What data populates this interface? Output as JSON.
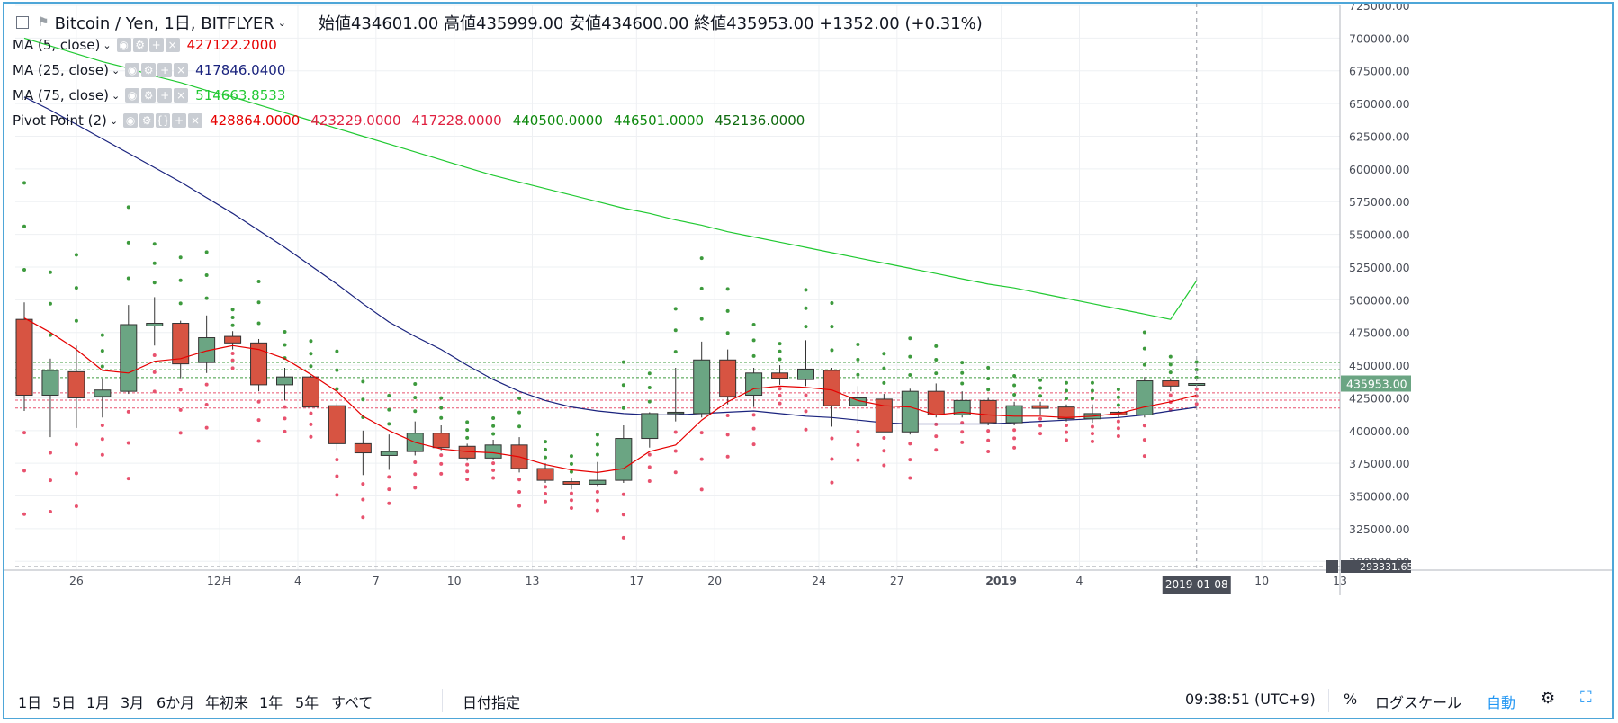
{
  "header": {
    "symbol": "Bitcoin / Yen, 1日, BITFLYER",
    "ohlc": "始値434601.00  高値435999.00  安値434600.00  終値435953.00  +1352.00 (+0.31%)"
  },
  "indicators": [
    {
      "name": "MA (5, close)",
      "values": [
        "427122.2000"
      ],
      "colors": [
        "#e60000"
      ]
    },
    {
      "name": "MA (25, close)",
      "values": [
        "417846.0400"
      ],
      "colors": [
        "#1a237e"
      ]
    },
    {
      "name": "MA (75, close)",
      "values": [
        "514663.8533"
      ],
      "colors": [
        "#21c932"
      ]
    },
    {
      "name": "Pivot Point (2)",
      "values": [
        "428864.0000",
        "423229.0000",
        "417228.0000",
        "440500.0000",
        "446501.0000",
        "452136.0000"
      ],
      "colors": [
        "#e60000",
        "#e02040",
        "#e02040",
        "#0e8a0e",
        "#0e8a0e",
        "#0e6a0e"
      ]
    }
  ],
  "price_axis": {
    "labels": [
      "725000.00",
      "700000.00",
      "675000.00",
      "650000.00",
      "625000.00",
      "600000.00",
      "575000.00",
      "550000.00",
      "525000.00",
      "500000.00",
      "475000.00",
      "450000.00",
      "425000.00",
      "400000.00",
      "375000.00",
      "350000.00",
      "325000.00",
      "300000.00"
    ],
    "current_price": "435953.00",
    "bottom_label": "293331.65"
  },
  "time_axis": {
    "labels": [
      "26",
      "12月",
      "4",
      "7",
      "10",
      "13",
      "17",
      "20",
      "24",
      "27",
      "2019",
      "4",
      "10",
      "13"
    ],
    "current_date": "2019-01-08"
  },
  "toolbar": {
    "ranges": [
      "1日",
      "5日",
      "1月",
      "3月",
      "6か月",
      "年初来",
      "1年",
      "5年",
      "すべて"
    ],
    "date_select": "日付指定",
    "clock": "09:38:51 (UTC+9)",
    "percent": "%",
    "log_scale": "ログスケール",
    "auto": "自動"
  },
  "colors": {
    "up": "#6ba583",
    "down": "#d75442",
    "ma5": "#e60000",
    "ma25": "#1a237e",
    "ma75": "#21c932",
    "frame": "#4ea6d8",
    "pivot_red": "#e8526e",
    "pivot_green": "#3d9a3d"
  },
  "chart_data": {
    "type": "candlestick",
    "price_range": [
      293331.65,
      725000
    ],
    "candles": [
      {
        "o": 485000,
        "h": 498000,
        "l": 415000,
        "c": 427000
      },
      {
        "o": 427000,
        "h": 455000,
        "l": 395000,
        "c": 446000
      },
      {
        "o": 445000,
        "h": 465000,
        "l": 402000,
        "c": 425000
      },
      {
        "o": 426000,
        "h": 440000,
        "l": 410000,
        "c": 431000
      },
      {
        "o": 430000,
        "h": 496000,
        "l": 428000,
        "c": 481000
      },
      {
        "o": 480000,
        "h": 502000,
        "l": 465000,
        "c": 482000
      },
      {
        "o": 482000,
        "h": 484000,
        "l": 440000,
        "c": 451000
      },
      {
        "o": 452000,
        "h": 488000,
        "l": 444000,
        "c": 471000
      },
      {
        "o": 472000,
        "h": 476000,
        "l": 462000,
        "c": 467000
      },
      {
        "o": 467000,
        "h": 470000,
        "l": 430000,
        "c": 435000
      },
      {
        "o": 435000,
        "h": 448000,
        "l": 423000,
        "c": 441000
      },
      {
        "o": 441000,
        "h": 442000,
        "l": 418000,
        "c": 418000
      },
      {
        "o": 419000,
        "h": 421000,
        "l": 385000,
        "c": 390000
      },
      {
        "o": 390000,
        "h": 400000,
        "l": 366000,
        "c": 383000
      },
      {
        "o": 381000,
        "h": 397000,
        "l": 370000,
        "c": 384000
      },
      {
        "o": 384000,
        "h": 407000,
        "l": 381000,
        "c": 398000
      },
      {
        "o": 398000,
        "h": 404000,
        "l": 385000,
        "c": 387000
      },
      {
        "o": 388000,
        "h": 390000,
        "l": 377000,
        "c": 379000
      },
      {
        "o": 379000,
        "h": 393000,
        "l": 378000,
        "c": 389000
      },
      {
        "o": 389000,
        "h": 395000,
        "l": 368000,
        "c": 371000
      },
      {
        "o": 371000,
        "h": 375000,
        "l": 360000,
        "c": 362000
      },
      {
        "o": 361000,
        "h": 364000,
        "l": 355000,
        "c": 359000
      },
      {
        "o": 359000,
        "h": 376000,
        "l": 357000,
        "c": 362000
      },
      {
        "o": 362000,
        "h": 404000,
        "l": 360000,
        "c": 394000
      },
      {
        "o": 394000,
        "h": 414000,
        "l": 387000,
        "c": 413000
      },
      {
        "o": 413000,
        "h": 448000,
        "l": 407000,
        "c": 414000
      },
      {
        "o": 413000,
        "h": 468000,
        "l": 410000,
        "c": 454000
      },
      {
        "o": 454000,
        "h": 462000,
        "l": 420000,
        "c": 426000
      },
      {
        "o": 427000,
        "h": 448000,
        "l": 418000,
        "c": 444000
      },
      {
        "o": 444000,
        "h": 450000,
        "l": 435000,
        "c": 440000
      },
      {
        "o": 439000,
        "h": 469000,
        "l": 434000,
        "c": 447000
      },
      {
        "o": 446000,
        "h": 448000,
        "l": 403000,
        "c": 419000
      },
      {
        "o": 419000,
        "h": 434000,
        "l": 405000,
        "c": 425000
      },
      {
        "o": 424000,
        "h": 428000,
        "l": 400000,
        "c": 399000
      },
      {
        "o": 399000,
        "h": 432000,
        "l": 397000,
        "c": 430000
      },
      {
        "o": 430000,
        "h": 436000,
        "l": 410000,
        "c": 412000
      },
      {
        "o": 412000,
        "h": 430000,
        "l": 410000,
        "c": 423000
      },
      {
        "o": 423000,
        "h": 425000,
        "l": 404000,
        "c": 406000
      },
      {
        "o": 406000,
        "h": 422000,
        "l": 404000,
        "c": 419000
      },
      {
        "o": 419000,
        "h": 422000,
        "l": 412000,
        "c": 417000
      },
      {
        "o": 418000,
        "h": 420000,
        "l": 407000,
        "c": 409000
      },
      {
        "o": 409000,
        "h": 420000,
        "l": 406000,
        "c": 413000
      },
      {
        "o": 414000,
        "h": 415000,
        "l": 410000,
        "c": 412000
      },
      {
        "o": 412000,
        "h": 441000,
        "l": 410000,
        "c": 438000
      },
      {
        "o": 438000,
        "h": 440000,
        "l": 430000,
        "c": 434000
      },
      {
        "o": 434600,
        "h": 436000,
        "l": 434600,
        "c": 435953
      }
    ],
    "ma5": [
      486000,
      475000,
      462000,
      446000,
      444000,
      453000,
      455000,
      461000,
      465000,
      462000,
      455000,
      443000,
      430000,
      411000,
      400000,
      391000,
      386000,
      384000,
      383000,
      380000,
      374000,
      370000,
      368000,
      371000,
      384000,
      389000,
      408000,
      422000,
      432000,
      434000,
      433000,
      431000,
      423000,
      419000,
      418000,
      412000,
      414000,
      412000,
      411000,
      411000,
      410000,
      411000,
      413000,
      418000,
      422000,
      427122
    ],
    "ma25": [
      655000,
      645000,
      634000,
      623000,
      612000,
      601000,
      590000,
      578000,
      566000,
      553000,
      540000,
      526000,
      512000,
      497000,
      483000,
      472000,
      462000,
      450000,
      439000,
      430000,
      423000,
      418000,
      415000,
      413000,
      412000,
      412000,
      413000,
      414000,
      415000,
      413000,
      411000,
      410000,
      408000,
      406000,
      405000,
      405000,
      405000,
      405000,
      406000,
      407000,
      408000,
      409000,
      410000,
      412000,
      415000,
      417846
    ],
    "ma75": [
      700000,
      694000,
      688000,
      682000,
      677000,
      671000,
      666000,
      660000,
      655000,
      649000,
      643000,
      637000,
      631000,
      625000,
      619000,
      613000,
      607000,
      601000,
      595000,
      590000,
      585000,
      580000,
      575000,
      570000,
      566000,
      561000,
      557000,
      552000,
      548000,
      544000,
      540000,
      536000,
      532000,
      528000,
      524000,
      520000,
      516000,
      512000,
      509000,
      505000,
      501000,
      497000,
      493000,
      489000,
      485000,
      514664
    ],
    "pivot_levels": [
      428864,
      423229,
      417228,
      440500,
      446501,
      452136
    ]
  }
}
